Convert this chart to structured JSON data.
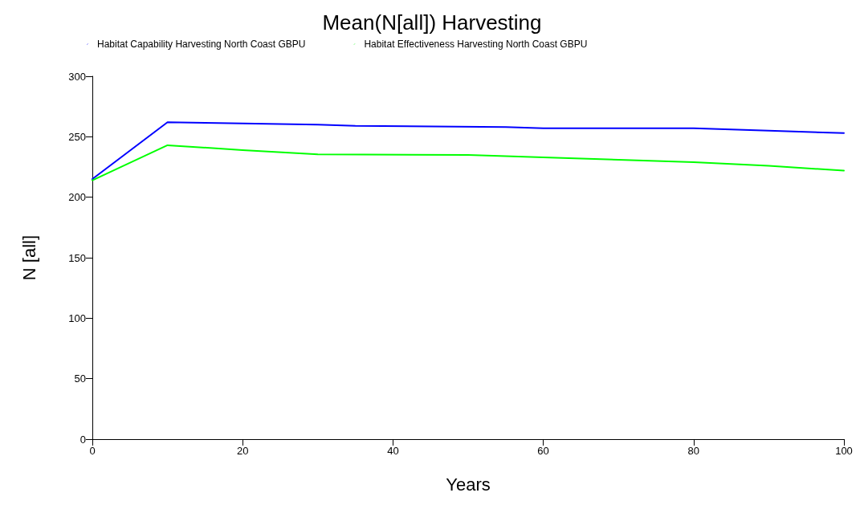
{
  "chart_data": {
    "type": "line",
    "title": "Mean(N[all]) Harvesting",
    "xlabel": "Years",
    "ylabel": "N [all]",
    "xlim": [
      0,
      100
    ],
    "xticks": [
      0,
      20,
      40,
      60,
      80,
      100
    ],
    "ylim": [
      0,
      300
    ],
    "yticks": [
      0,
      50,
      100,
      150,
      200,
      250,
      300
    ],
    "grid": false,
    "legend": "top left",
    "marker": "none",
    "line_style": "solid",
    "series": [
      {
        "name": "Habitat Capability Harvesting North Coast GBPU",
        "color": "#0000ff",
        "x": [
          0,
          10,
          15,
          20,
          30,
          35,
          55,
          60,
          80,
          85,
          90,
          100
        ],
        "values": [
          215,
          262,
          261.5,
          261,
          260,
          259,
          258,
          257,
          257,
          256,
          255,
          253
        ]
      },
      {
        "name": "Habitat Effectiveness Harvesting North Coast GBPU",
        "color": "#00ff00",
        "x": [
          0,
          10,
          20,
          30,
          50,
          60,
          70,
          80,
          90,
          100
        ],
        "values": [
          214,
          243,
          239,
          235.5,
          235,
          233,
          231,
          229,
          226,
          222
        ]
      }
    ]
  }
}
